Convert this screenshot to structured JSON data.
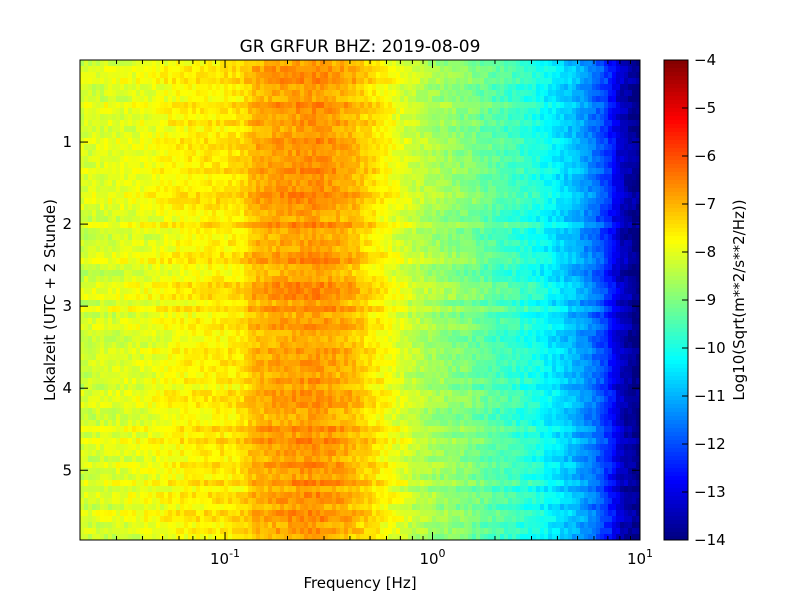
{
  "chart_data": {
    "type": "heatmap",
    "title": "GR GRFUR BHZ: 2019-08-09",
    "xlabel": "Frequency [Hz]",
    "ylabel": "Lokalzeit (UTC + 2 Stunde)",
    "x_scale": "log",
    "xlim": [
      0.02,
      10
    ],
    "x_ticks": [
      {
        "value": 0.1,
        "base": "10",
        "exp": "-1"
      },
      {
        "value": 1,
        "base": "10",
        "exp": "0"
      },
      {
        "value": 10,
        "base": "10",
        "exp": "1"
      }
    ],
    "ylim": [
      0,
      5.85
    ],
    "y_inverted": true,
    "y_ticks": [
      {
        "value": 1,
        "label": "1"
      },
      {
        "value": 2,
        "label": "2"
      },
      {
        "value": 3,
        "label": "3"
      },
      {
        "value": 4,
        "label": "4"
      },
      {
        "value": 5,
        "label": "5"
      }
    ],
    "colorbar": {
      "label": "Log10(Sqrt(m**2/s**2/Hz))",
      "range": [
        -14,
        -4
      ],
      "colormap": "jet",
      "ticks": [
        {
          "value": -4,
          "label": "−4"
        },
        {
          "value": -5,
          "label": "−5"
        },
        {
          "value": -6,
          "label": "−6"
        },
        {
          "value": -7,
          "label": "−7"
        },
        {
          "value": -8,
          "label": "−8"
        },
        {
          "value": -9,
          "label": "−9"
        },
        {
          "value": -10,
          "label": "−10"
        },
        {
          "value": -11,
          "label": "−11"
        },
        {
          "value": -12,
          "label": "−12"
        },
        {
          "value": -13,
          "label": "−13"
        },
        {
          "value": -14,
          "label": "−14"
        }
      ]
    },
    "spectrum_profile": {
      "frequency_hz": [
        0.02,
        0.04,
        0.06,
        0.08,
        0.12,
        0.14,
        0.2,
        0.28,
        0.4,
        0.55,
        0.8,
        1.0,
        1.5,
        2.0,
        3.0,
        4.0,
        5.0,
        6.0,
        7.0,
        8.0,
        10.0
      ],
      "value": [
        -8.2,
        -8.0,
        -7.7,
        -7.6,
        -7.5,
        -7.0,
        -6.8,
        -6.7,
        -7.0,
        -7.6,
        -8.3,
        -8.6,
        -9.0,
        -9.4,
        -9.9,
        -10.5,
        -11.0,
        -11.6,
        -12.3,
        -13.3,
        -14.0
      ]
    },
    "grid": false
  }
}
